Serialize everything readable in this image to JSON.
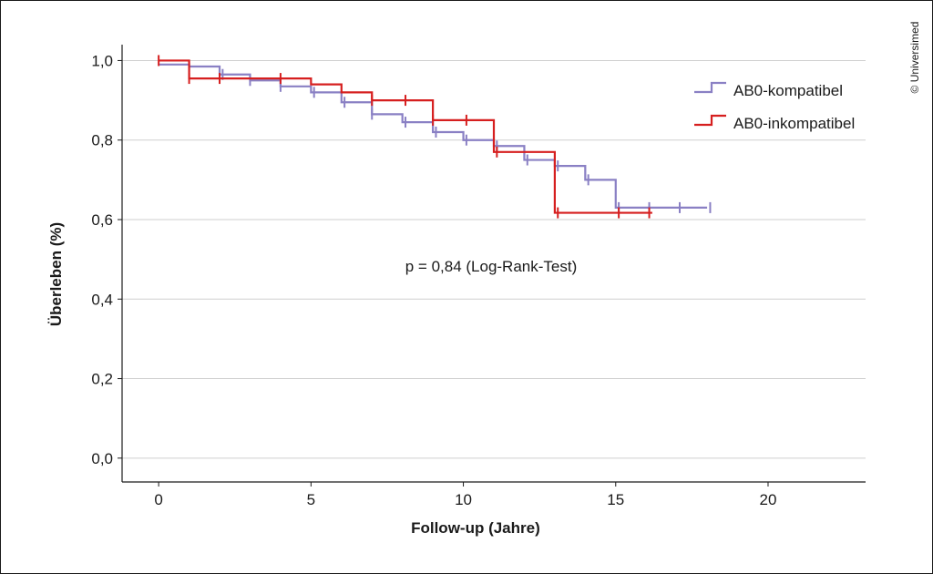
{
  "copyright": "© Universimed",
  "chart_data": {
    "type": "line",
    "step": true,
    "title": "",
    "xlabel": "Follow-up (Jahre)",
    "ylabel": "Überleben (%)",
    "xlim": [
      -1.2,
      23.2
    ],
    "ylim": [
      -0.06,
      1.04
    ],
    "xticks": [
      0,
      5,
      10,
      15,
      20
    ],
    "xtick_labels": [
      "0",
      "5",
      "10",
      "15",
      "20"
    ],
    "yticks": [
      0.0,
      0.2,
      0.4,
      0.6,
      0.8,
      1.0
    ],
    "ytick_labels": [
      "0,0",
      "0,2",
      "0,4",
      "0,6",
      "0,8",
      "1,0"
    ],
    "grid": "horizontal",
    "legend_position": "top-right",
    "annotation": "p = 0,84 (Log-Rank-Test)",
    "series": [
      {
        "name": "AB0-kompatibel",
        "color": "#8a80c4",
        "x": [
          0,
          1,
          2,
          3,
          4,
          5,
          6,
          7,
          8,
          9,
          10,
          11,
          12,
          13,
          14,
          15,
          18
        ],
        "y": [
          0.99,
          0.985,
          0.965,
          0.95,
          0.935,
          0.92,
          0.895,
          0.865,
          0.845,
          0.82,
          0.8,
          0.785,
          0.75,
          0.735,
          0.7,
          0.63,
          0.63
        ],
        "censored": [
          {
            "x": 1.0,
            "y": 0.985
          },
          {
            "x": 2.1,
            "y": 0.965
          },
          {
            "x": 3.0,
            "y": 0.95
          },
          {
            "x": 4.0,
            "y": 0.935
          },
          {
            "x": 5.1,
            "y": 0.92
          },
          {
            "x": 6.1,
            "y": 0.895
          },
          {
            "x": 7.0,
            "y": 0.865
          },
          {
            "x": 8.1,
            "y": 0.845
          },
          {
            "x": 9.1,
            "y": 0.82
          },
          {
            "x": 10.1,
            "y": 0.8
          },
          {
            "x": 11.1,
            "y": 0.785
          },
          {
            "x": 12.1,
            "y": 0.75
          },
          {
            "x": 13.1,
            "y": 0.735
          },
          {
            "x": 14.1,
            "y": 0.7
          },
          {
            "x": 15.1,
            "y": 0.63
          },
          {
            "x": 16.1,
            "y": 0.63
          },
          {
            "x": 17.1,
            "y": 0.63
          },
          {
            "x": 18.1,
            "y": 0.63
          }
        ]
      },
      {
        "name": "AB0-inkompatibel",
        "color": "#d61f1f",
        "x": [
          0,
          1,
          5,
          6,
          7,
          9,
          11,
          13,
          16.2
        ],
        "y": [
          1.0,
          0.955,
          0.94,
          0.92,
          0.9,
          0.85,
          0.77,
          0.617,
          0.617
        ],
        "censored": [
          {
            "x": 0.0,
            "y": 1.0
          },
          {
            "x": 1.0,
            "y": 0.955
          },
          {
            "x": 2.0,
            "y": 0.955
          },
          {
            "x": 4.0,
            "y": 0.955
          },
          {
            "x": 7.0,
            "y": 0.9
          },
          {
            "x": 8.1,
            "y": 0.9
          },
          {
            "x": 9.0,
            "y": 0.85
          },
          {
            "x": 10.1,
            "y": 0.85
          },
          {
            "x": 11.1,
            "y": 0.77
          },
          {
            "x": 13.1,
            "y": 0.617
          },
          {
            "x": 15.1,
            "y": 0.617
          },
          {
            "x": 16.1,
            "y": 0.617
          }
        ]
      }
    ]
  }
}
